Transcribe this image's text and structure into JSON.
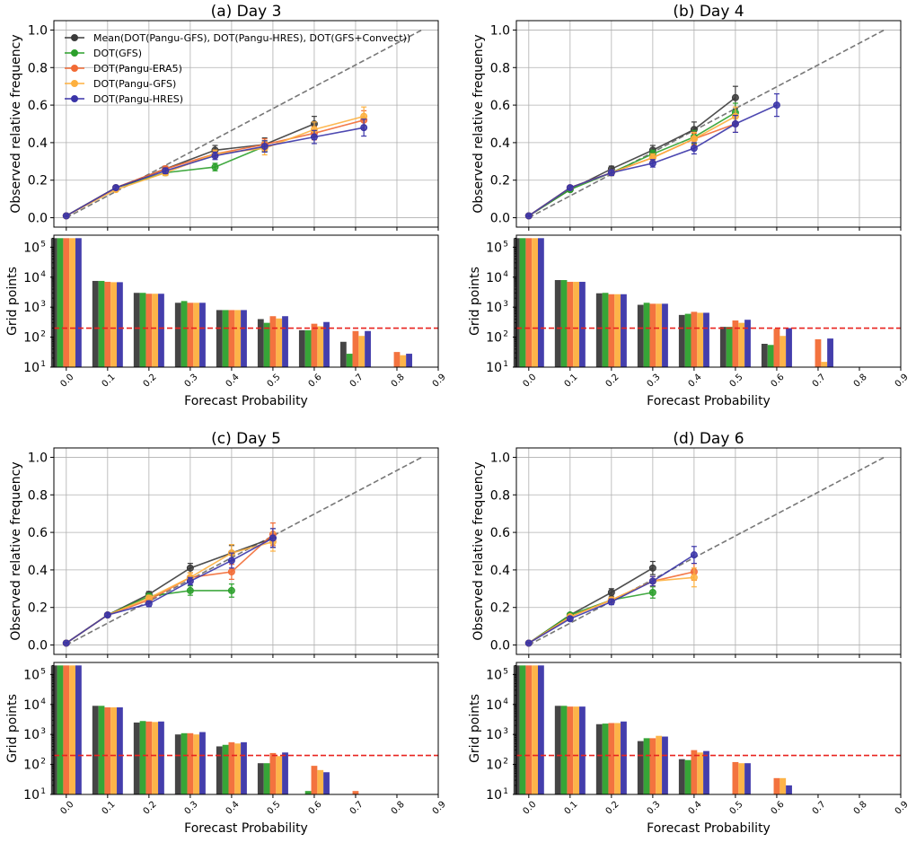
{
  "figure": {
    "x_axis_label": "Forecast Probability",
    "y_axis_label_reliability": "Observed relative frequency",
    "y_axis_label_counts": "Grid points",
    "x_ticks": [
      0.0,
      0.1,
      0.2,
      0.3,
      0.4,
      0.5,
      0.6,
      0.7,
      0.8,
      0.9
    ],
    "x_tick_labels": [
      "0.0",
      "0.1",
      "0.2",
      "0.3",
      "0.4",
      "0.5",
      "0.6",
      "0.7",
      "0.8",
      "0.9"
    ],
    "rel_y_ticks": [
      0.0,
      0.2,
      0.4,
      0.6,
      0.8,
      1.0
    ],
    "rel_y_tick_labels": [
      "0.0",
      "0.2",
      "0.4",
      "0.6",
      "0.8",
      "1.0"
    ],
    "count_y_ticks": [
      1,
      2,
      3,
      4,
      5
    ],
    "count_y_tick_labels": [
      "10",
      "10",
      "10",
      "10",
      "10"
    ],
    "count_y_tick_exponents": [
      "1",
      "2",
      "3",
      "4",
      "5"
    ],
    "threshold": 200,
    "threshold_color": "#e8231f",
    "diagonal_color": "#777777"
  },
  "legend": [
    {
      "label": "Mean(DOT(Pangu-GFS), DOT(Pangu-HRES), DOT(GFS+Convect))",
      "color": "#3b3b3b"
    },
    {
      "label": "DOT(GFS)",
      "color": "#2ca02c"
    },
    {
      "label": "DOT(Pangu-ERA5)",
      "color": "#f26b35"
    },
    {
      "label": "DOT(Pangu-GFS)",
      "color": "#fdb03f"
    },
    {
      "label": "DOT(Pangu-HRES)",
      "color": "#3a34a8"
    }
  ],
  "chart_data": [
    {
      "type": "line",
      "title": "(a) Day 3",
      "xlabel": "Forecast Probability",
      "ylabel": "Observed relative frequency",
      "xlim": [
        -0.03,
        0.9
      ],
      "ylim": [
        -0.05,
        1.05
      ],
      "series": [
        {
          "name": "Mean(DOT(Pangu-GFS), DOT(Pangu-HRES), DOT(GFS+Convect))",
          "x": [
            0.0,
            0.12,
            0.24,
            0.36,
            0.48,
            0.6
          ],
          "y": [
            0.01,
            0.16,
            0.26,
            0.36,
            0.39,
            0.5
          ],
          "err": [
            0.005,
            0.01,
            0.015,
            0.025,
            0.035,
            0.04
          ]
        },
        {
          "name": "DOT(GFS)",
          "x": [
            0.0,
            0.12,
            0.24,
            0.36,
            0.48
          ],
          "y": [
            0.01,
            0.16,
            0.24,
            0.27,
            0.38
          ],
          "err": [
            0.005,
            0.01,
            0.015,
            0.02,
            0.03
          ]
        },
        {
          "name": "DOT(Pangu-ERA5)",
          "x": [
            0.0,
            0.12,
            0.24,
            0.36,
            0.48,
            0.6,
            0.72
          ],
          "y": [
            0.01,
            0.16,
            0.26,
            0.34,
            0.39,
            0.45,
            0.52
          ],
          "err": [
            0.005,
            0.01,
            0.015,
            0.02,
            0.03,
            0.035,
            0.05
          ]
        },
        {
          "name": "DOT(Pangu-GFS)",
          "x": [
            0.0,
            0.12,
            0.24,
            0.36,
            0.48,
            0.6,
            0.72
          ],
          "y": [
            0.01,
            0.15,
            0.24,
            0.34,
            0.37,
            0.47,
            0.54
          ],
          "err": [
            0.005,
            0.01,
            0.015,
            0.02,
            0.035,
            0.04,
            0.05
          ]
        },
        {
          "name": "DOT(Pangu-HRES)",
          "x": [
            0.0,
            0.12,
            0.24,
            0.36,
            0.48,
            0.6,
            0.72
          ],
          "y": [
            0.01,
            0.16,
            0.25,
            0.33,
            0.38,
            0.43,
            0.48
          ],
          "err": [
            0.005,
            0.01,
            0.015,
            0.02,
            0.03,
            0.035,
            0.045
          ]
        }
      ],
      "counts": {
        "categories": [
          0.0,
          0.1,
          0.2,
          0.3,
          0.4,
          0.5,
          0.6,
          0.7,
          0.8
        ],
        "series": [
          {
            "name": "Mean(DOT(Pangu-GFS), DOT(Pangu-HRES), DOT(GFS+Convect))",
            "values": [
              200000,
              7500,
              3000,
              1400,
              800,
              400,
              170,
              70,
              0
            ]
          },
          {
            "name": "DOT(GFS)",
            "values": [
              200000,
              7500,
              3000,
              1600,
              800,
              300,
              170,
              28,
              0
            ]
          },
          {
            "name": "DOT(Pangu-ERA5)",
            "values": [
              200000,
              7000,
              2800,
              1400,
              800,
              500,
              280,
              160,
              32
            ]
          },
          {
            "name": "DOT(Pangu-GFS)",
            "values": [
              200000,
              6800,
              2800,
              1400,
              800,
              420,
              230,
              110,
              25
            ]
          },
          {
            "name": "DOT(Pangu-HRES)",
            "values": [
              200000,
              6800,
              2800,
              1400,
              800,
              500,
              320,
              160,
              28
            ]
          }
        ]
      }
    },
    {
      "type": "line",
      "title": "(b) Day 4",
      "xlabel": "Forecast Probability",
      "ylabel": "Observed relative frequency",
      "xlim": [
        -0.03,
        0.9
      ],
      "ylim": [
        -0.05,
        1.05
      ],
      "series": [
        {
          "name": "Mean(DOT(Pangu-GFS), DOT(Pangu-HRES), DOT(GFS+Convect))",
          "x": [
            0.0,
            0.1,
            0.2,
            0.3,
            0.4,
            0.5
          ],
          "y": [
            0.01,
            0.15,
            0.26,
            0.36,
            0.47,
            0.64
          ],
          "err": [
            0.005,
            0.01,
            0.015,
            0.025,
            0.04,
            0.06
          ]
        },
        {
          "name": "DOT(GFS)",
          "x": [
            0.0,
            0.1,
            0.2,
            0.3,
            0.4,
            0.5
          ],
          "y": [
            0.01,
            0.15,
            0.24,
            0.34,
            0.43,
            0.56
          ],
          "err": [
            0.005,
            0.01,
            0.015,
            0.02,
            0.035,
            0.05
          ]
        },
        {
          "name": "DOT(Pangu-ERA5)",
          "x": [
            0.0,
            0.1,
            0.2,
            0.3,
            0.4,
            0.5
          ],
          "y": [
            0.01,
            0.16,
            0.24,
            0.32,
            0.42,
            0.5
          ],
          "err": [
            0.005,
            0.01,
            0.015,
            0.02,
            0.03,
            0.045
          ]
        },
        {
          "name": "DOT(Pangu-GFS)",
          "x": [
            0.0,
            0.1,
            0.2,
            0.3,
            0.4,
            0.5
          ],
          "y": [
            0.01,
            0.16,
            0.24,
            0.32,
            0.42,
            0.54
          ],
          "err": [
            0.005,
            0.01,
            0.015,
            0.02,
            0.035,
            0.05
          ]
        },
        {
          "name": "DOT(Pangu-HRES)",
          "x": [
            0.0,
            0.1,
            0.2,
            0.3,
            0.4,
            0.5,
            0.6
          ],
          "y": [
            0.01,
            0.16,
            0.24,
            0.29,
            0.37,
            0.5,
            0.6
          ],
          "err": [
            0.005,
            0.01,
            0.015,
            0.02,
            0.03,
            0.045,
            0.06
          ]
        }
      ],
      "counts": {
        "categories": [
          0.0,
          0.1,
          0.2,
          0.3,
          0.4,
          0.5,
          0.6,
          0.7,
          0.8
        ],
        "series": [
          {
            "name": "Mean(DOT(Pangu-GFS), DOT(Pangu-HRES), DOT(GFS+Convect))",
            "values": [
              200000,
              8000,
              2900,
              1200,
              550,
              220,
              60,
              0,
              0
            ]
          },
          {
            "name": "DOT(GFS)",
            "values": [
              200000,
              8000,
              3000,
              1400,
              600,
              220,
              55,
              0,
              0
            ]
          },
          {
            "name": "DOT(Pangu-ERA5)",
            "values": [
              200000,
              7000,
              2700,
              1300,
              700,
              360,
              190,
              85,
              0
            ]
          },
          {
            "name": "DOT(Pangu-GFS)",
            "values": [
              200000,
              7000,
              2700,
              1300,
              650,
              300,
              110,
              15,
              0
            ]
          },
          {
            "name": "DOT(Pangu-HRES)",
            "values": [
              200000,
              7000,
              2700,
              1300,
              650,
              380,
              200,
              90,
              0
            ]
          }
        ]
      }
    },
    {
      "type": "line",
      "title": "(c) Day 5",
      "xlabel": "Forecast Probability",
      "ylabel": "Observed relative frequency",
      "xlim": [
        -0.03,
        0.9
      ],
      "ylim": [
        -0.05,
        1.05
      ],
      "series": [
        {
          "name": "Mean(DOT(Pangu-GFS), DOT(Pangu-HRES), DOT(GFS+Convect))",
          "x": [
            0.0,
            0.1,
            0.2,
            0.3,
            0.4,
            0.5
          ],
          "y": [
            0.01,
            0.16,
            0.27,
            0.41,
            0.49,
            0.57
          ],
          "err": [
            0.005,
            0.01,
            0.015,
            0.025,
            0.04,
            0.05
          ]
        },
        {
          "name": "DOT(GFS)",
          "x": [
            0.0,
            0.1,
            0.2,
            0.3,
            0.4
          ],
          "y": [
            0.01,
            0.16,
            0.26,
            0.29,
            0.29
          ],
          "err": [
            0.005,
            0.01,
            0.015,
            0.025,
            0.035
          ]
        },
        {
          "name": "DOT(Pangu-ERA5)",
          "x": [
            0.0,
            0.1,
            0.2,
            0.3,
            0.4,
            0.5
          ],
          "y": [
            0.01,
            0.16,
            0.24,
            0.36,
            0.39,
            0.59
          ],
          "err": [
            0.005,
            0.01,
            0.015,
            0.025,
            0.04,
            0.06
          ]
        },
        {
          "name": "DOT(Pangu-GFS)",
          "x": [
            0.0,
            0.1,
            0.2,
            0.3,
            0.4,
            0.5
          ],
          "y": [
            0.01,
            0.16,
            0.25,
            0.36,
            0.49,
            0.55
          ],
          "err": [
            0.005,
            0.01,
            0.015,
            0.025,
            0.045,
            0.05
          ]
        },
        {
          "name": "DOT(Pangu-HRES)",
          "x": [
            0.0,
            0.1,
            0.2,
            0.3,
            0.4,
            0.5
          ],
          "y": [
            0.01,
            0.16,
            0.22,
            0.34,
            0.45,
            0.57
          ],
          "err": [
            0.005,
            0.01,
            0.015,
            0.02,
            0.04,
            0.05
          ]
        }
      ],
      "counts": {
        "categories": [
          0.0,
          0.1,
          0.2,
          0.3,
          0.4,
          0.5,
          0.6,
          0.7,
          0.8
        ],
        "series": [
          {
            "name": "Mean(DOT(Pangu-GFS), DOT(Pangu-HRES), DOT(GFS+Convect))",
            "values": [
              200000,
              9000,
              2500,
              1000,
              400,
              110,
              0,
              0,
              0
            ]
          },
          {
            "name": "DOT(GFS)",
            "values": [
              200000,
              9000,
              2800,
              1100,
              450,
              110,
              13,
              0,
              0
            ]
          },
          {
            "name": "DOT(Pangu-ERA5)",
            "values": [
              200000,
              8000,
              2700,
              1100,
              550,
              240,
              90,
              13,
              0
            ]
          },
          {
            "name": "DOT(Pangu-GFS)",
            "values": [
              200000,
              8000,
              2600,
              1000,
              500,
              190,
              65,
              0,
              0
            ]
          },
          {
            "name": "DOT(Pangu-HRES)",
            "values": [
              200000,
              8000,
              2700,
              1200,
              550,
              250,
              55,
              0,
              0
            ]
          }
        ]
      }
    },
    {
      "type": "line",
      "title": "(d) Day 6",
      "xlabel": "Forecast Probability",
      "ylabel": "Observed relative frequency",
      "xlim": [
        -0.03,
        0.9
      ],
      "ylim": [
        -0.05,
        1.05
      ],
      "series": [
        {
          "name": "Mean(DOT(Pangu-GFS), DOT(Pangu-HRES), DOT(GFS+Convect))",
          "x": [
            0.0,
            0.1,
            0.2,
            0.3
          ],
          "y": [
            0.01,
            0.16,
            0.28,
            0.41
          ],
          "err": [
            0.005,
            0.01,
            0.02,
            0.035
          ]
        },
        {
          "name": "DOT(GFS)",
          "x": [
            0.0,
            0.1,
            0.2,
            0.3
          ],
          "y": [
            0.01,
            0.16,
            0.24,
            0.28
          ],
          "err": [
            0.005,
            0.01,
            0.015,
            0.03
          ]
        },
        {
          "name": "DOT(Pangu-ERA5)",
          "x": [
            0.0,
            0.1,
            0.2,
            0.3,
            0.4
          ],
          "y": [
            0.01,
            0.15,
            0.24,
            0.34,
            0.39
          ],
          "err": [
            0.005,
            0.01,
            0.015,
            0.025,
            0.045
          ]
        },
        {
          "name": "DOT(Pangu-GFS)",
          "x": [
            0.0,
            0.1,
            0.2,
            0.3,
            0.4
          ],
          "y": [
            0.01,
            0.15,
            0.24,
            0.34,
            0.36
          ],
          "err": [
            0.005,
            0.01,
            0.015,
            0.025,
            0.05
          ]
        },
        {
          "name": "DOT(Pangu-HRES)",
          "x": [
            0.0,
            0.1,
            0.2,
            0.3,
            0.4
          ],
          "y": [
            0.01,
            0.14,
            0.23,
            0.34,
            0.48
          ],
          "err": [
            0.005,
            0.01,
            0.015,
            0.025,
            0.045
          ]
        }
      ],
      "counts": {
        "categories": [
          0.0,
          0.1,
          0.2,
          0.3,
          0.4,
          0.5,
          0.6,
          0.7,
          0.8
        ],
        "series": [
          {
            "name": "Mean(DOT(Pangu-GFS), DOT(Pangu-HRES), DOT(GFS+Convect))",
            "values": [
              200000,
              9000,
              2200,
              600,
              150,
              0,
              0,
              0,
              0
            ]
          },
          {
            "name": "DOT(GFS)",
            "values": [
              200000,
              9000,
              2300,
              750,
              140,
              10,
              0,
              0,
              0
            ]
          },
          {
            "name": "DOT(Pangu-ERA5)",
            "values": [
              200000,
              8500,
              2400,
              750,
              300,
              120,
              35,
              0,
              0
            ]
          },
          {
            "name": "DOT(Pangu-GFS)",
            "values": [
              200000,
              8500,
              2400,
              900,
              250,
              110,
              35,
              0,
              0
            ]
          },
          {
            "name": "DOT(Pangu-HRES)",
            "values": [
              200000,
              8500,
              2700,
              850,
              280,
              110,
              20,
              0,
              0
            ]
          }
        ]
      }
    }
  ]
}
